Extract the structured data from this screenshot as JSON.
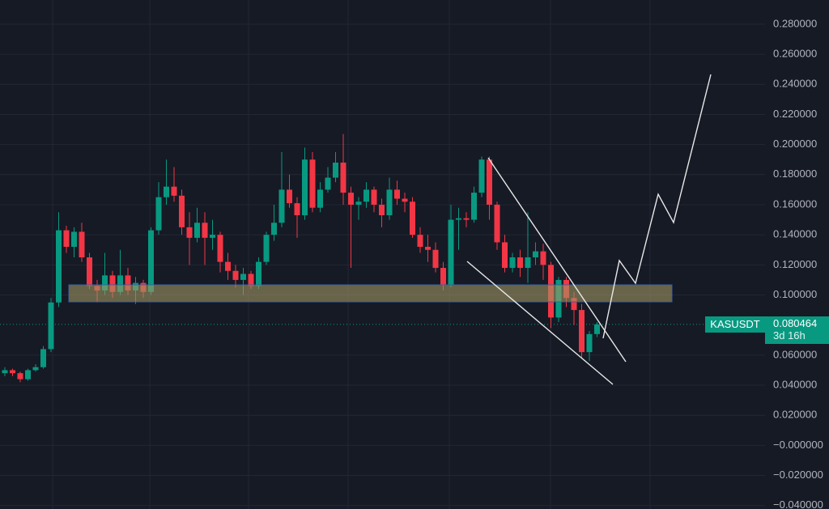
{
  "chart_data": {
    "type": "candlestick",
    "symbol": "KASUSDT",
    "last_price": {
      "value": 0.080464,
      "label": "0.080464"
    },
    "countdown": "3d 16h",
    "up_color": "#089981",
    "down_color": "#f23645",
    "ylim": [
      -0.0423,
      0.2961
    ],
    "yticks": [
      {
        "value": 0.28,
        "label": "0.280000"
      },
      {
        "value": 0.26,
        "label": "0.260000"
      },
      {
        "value": 0.24,
        "label": "0.240000"
      },
      {
        "value": 0.22,
        "label": "0.220000"
      },
      {
        "value": 0.2,
        "label": "0.200000"
      },
      {
        "value": 0.18,
        "label": "0.180000"
      },
      {
        "value": 0.16,
        "label": "0.160000"
      },
      {
        "value": 0.14,
        "label": "0.140000"
      },
      {
        "value": 0.12,
        "label": "0.120000"
      },
      {
        "value": 0.1,
        "label": "0.100000"
      },
      {
        "value": 0.06,
        "label": "0.060000"
      },
      {
        "value": 0.04,
        "label": "0.040000"
      },
      {
        "value": 0.02,
        "label": "0.020000"
      },
      {
        "value": 0,
        "label": "−0.000000"
      },
      {
        "value": -0.02,
        "label": "−0.020000"
      },
      {
        "value": -0.04,
        "label": "−0.040000"
      }
    ],
    "grid": true,
    "candles": [
      [
        0.048,
        0.052,
        0.046,
        0.05
      ],
      [
        0.05,
        0.051,
        0.046,
        0.048
      ],
      [
        0.048,
        0.049,
        0.042,
        0.044
      ],
      [
        0.044,
        0.051,
        0.043,
        0.05
      ],
      [
        0.05,
        0.054,
        0.049,
        0.052
      ],
      [
        0.052,
        0.066,
        0.051,
        0.064
      ],
      [
        0.064,
        0.098,
        0.062,
        0.095
      ],
      [
        0.095,
        0.155,
        0.092,
        0.143
      ],
      [
        0.143,
        0.146,
        0.128,
        0.132
      ],
      [
        0.132,
        0.145,
        0.125,
        0.142
      ],
      [
        0.142,
        0.148,
        0.122,
        0.125
      ],
      [
        0.125,
        0.128,
        0.104,
        0.106
      ],
      [
        0.106,
        0.11,
        0.095,
        0.103
      ],
      [
        0.103,
        0.128,
        0.1,
        0.113
      ],
      [
        0.113,
        0.116,
        0.098,
        0.102
      ],
      [
        0.102,
        0.13,
        0.1,
        0.113
      ],
      [
        0.113,
        0.118,
        0.1,
        0.103
      ],
      [
        0.103,
        0.112,
        0.094,
        0.108
      ],
      [
        0.108,
        0.11,
        0.098,
        0.102
      ],
      [
        0.102,
        0.145,
        0.1,
        0.143
      ],
      [
        0.143,
        0.175,
        0.14,
        0.165
      ],
      [
        0.165,
        0.19,
        0.16,
        0.172
      ],
      [
        0.172,
        0.185,
        0.162,
        0.166
      ],
      [
        0.166,
        0.17,
        0.14,
        0.145
      ],
      [
        0.145,
        0.155,
        0.12,
        0.138
      ],
      [
        0.138,
        0.158,
        0.135,
        0.148
      ],
      [
        0.148,
        0.155,
        0.12,
        0.138
      ],
      [
        0.138,
        0.15,
        0.13,
        0.14
      ],
      [
        0.14,
        0.142,
        0.115,
        0.122
      ],
      [
        0.122,
        0.128,
        0.11,
        0.116
      ],
      [
        0.116,
        0.12,
        0.105,
        0.11
      ],
      [
        0.11,
        0.118,
        0.1,
        0.114
      ],
      [
        0.114,
        0.116,
        0.104,
        0.106
      ],
      [
        0.106,
        0.125,
        0.104,
        0.122
      ],
      [
        0.122,
        0.142,
        0.12,
        0.14
      ],
      [
        0.14,
        0.16,
        0.136,
        0.148
      ],
      [
        0.148,
        0.195,
        0.145,
        0.17
      ],
      [
        0.17,
        0.18,
        0.158,
        0.161
      ],
      [
        0.161,
        0.165,
        0.138,
        0.153
      ],
      [
        0.153,
        0.198,
        0.15,
        0.19
      ],
      [
        0.19,
        0.195,
        0.155,
        0.158
      ],
      [
        0.158,
        0.175,
        0.155,
        0.17
      ],
      [
        0.17,
        0.185,
        0.168,
        0.178
      ],
      [
        0.178,
        0.195,
        0.175,
        0.188
      ],
      [
        0.188,
        0.207,
        0.16,
        0.168
      ],
      [
        0.168,
        0.172,
        0.118,
        0.16
      ],
      [
        0.16,
        0.165,
        0.15,
        0.162
      ],
      [
        0.162,
        0.175,
        0.158,
        0.17
      ],
      [
        0.17,
        0.172,
        0.155,
        0.16
      ],
      [
        0.16,
        0.164,
        0.145,
        0.153
      ],
      [
        0.153,
        0.178,
        0.15,
        0.17
      ],
      [
        0.17,
        0.176,
        0.16,
        0.164
      ],
      [
        0.164,
        0.168,
        0.155,
        0.162
      ],
      [
        0.162,
        0.165,
        0.138,
        0.14
      ],
      [
        0.14,
        0.145,
        0.128,
        0.132
      ],
      [
        0.132,
        0.14,
        0.122,
        0.13
      ],
      [
        0.13,
        0.135,
        0.115,
        0.118
      ],
      [
        0.118,
        0.122,
        0.103,
        0.107
      ],
      [
        0.107,
        0.16,
        0.105,
        0.15
      ],
      [
        0.15,
        0.158,
        0.13,
        0.151
      ],
      [
        0.151,
        0.155,
        0.145,
        0.15
      ],
      [
        0.15,
        0.172,
        0.148,
        0.168
      ],
      [
        0.168,
        0.192,
        0.165,
        0.19
      ],
      [
        0.19,
        0.192,
        0.15,
        0.16
      ],
      [
        0.16,
        0.162,
        0.13,
        0.135
      ],
      [
        0.135,
        0.14,
        0.115,
        0.118
      ],
      [
        0.118,
        0.128,
        0.115,
        0.125
      ],
      [
        0.125,
        0.13,
        0.112,
        0.118
      ],
      [
        0.118,
        0.155,
        0.108,
        0.125
      ],
      [
        0.125,
        0.135,
        0.12,
        0.129
      ],
      [
        0.129,
        0.134,
        0.11,
        0.12
      ],
      [
        0.12,
        0.122,
        0.078,
        0.085
      ],
      [
        0.085,
        0.112,
        0.082,
        0.11
      ],
      [
        0.11,
        0.112,
        0.092,
        0.098
      ],
      [
        0.098,
        0.102,
        0.08,
        0.09
      ],
      [
        0.09,
        0.094,
        0.058,
        0.062
      ],
      [
        0.062,
        0.076,
        0.056,
        0.074
      ],
      [
        0.074,
        0.082,
        0.072,
        0.080464
      ]
    ]
  }
}
